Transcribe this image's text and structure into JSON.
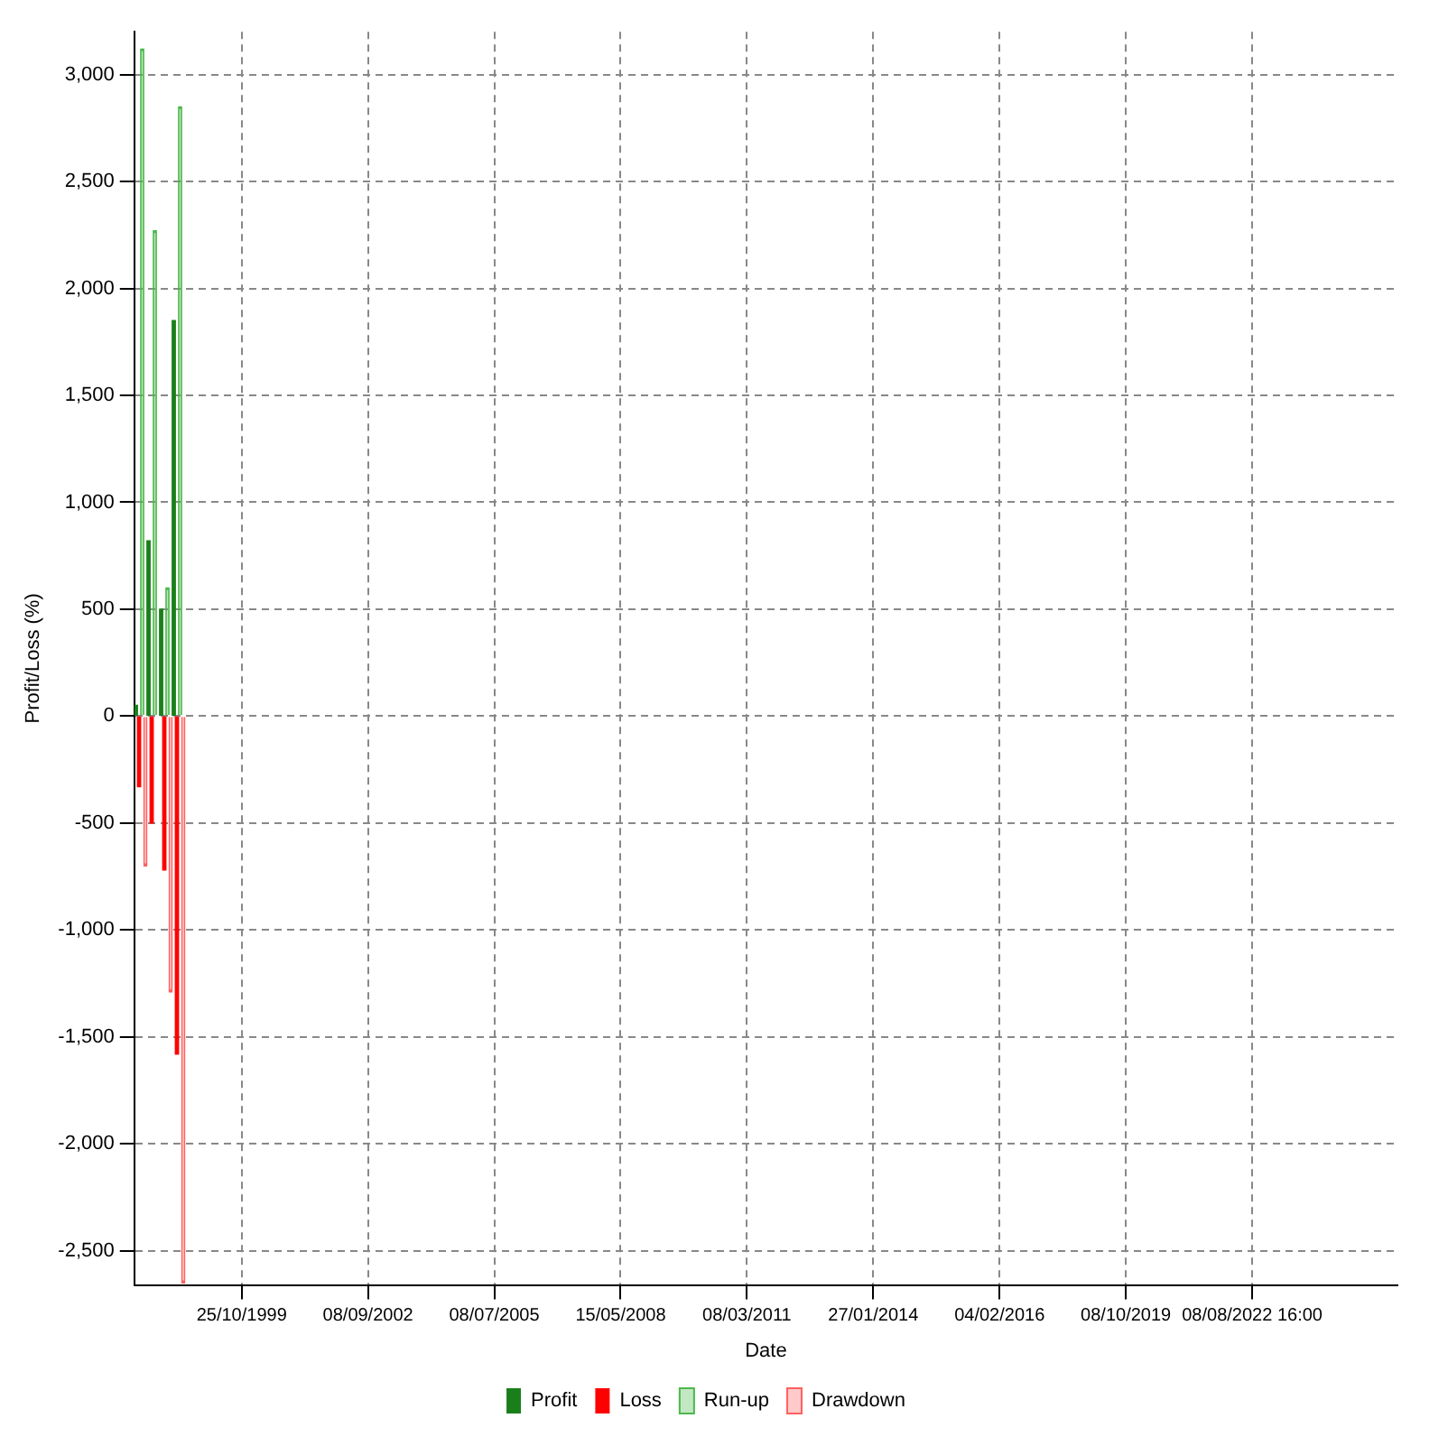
{
  "chart_data": {
    "type": "bar",
    "xlabel": "Date",
    "ylabel": "Profit/Loss (%)",
    "categories": [
      null,
      null,
      null,
      null,
      null,
      null,
      null,
      null,
      "25/10/1999",
      null,
      null,
      null,
      null,
      null,
      null,
      null,
      null,
      null,
      "08/09/2002",
      null,
      null,
      null,
      null,
      null,
      null,
      null,
      null,
      null,
      "08/07/2005",
      null,
      null,
      null,
      null,
      null,
      null,
      null,
      null,
      null,
      "15/05/2008",
      null,
      null,
      null,
      null,
      null,
      null,
      null,
      null,
      null,
      "08/03/2011",
      null,
      null,
      null,
      null,
      null,
      null,
      null,
      null,
      null,
      "27/01/2014",
      null,
      null,
      null,
      null,
      null,
      null,
      null,
      null,
      null,
      "04/02/2016",
      null,
      null,
      null,
      null,
      null,
      null,
      null,
      null,
      null,
      "08/10/2019",
      null,
      null,
      null,
      null,
      null,
      null,
      null,
      null,
      null,
      "08/08/2022 16:00",
      null,
      null,
      null,
      null,
      null,
      null,
      null,
      null,
      null,
      null,
      null
    ],
    "ylim": [
      -2660,
      3200
    ],
    "yticks": [
      {
        "value": -2500,
        "label": "-2,500"
      },
      {
        "value": -2000,
        "label": "-2,000"
      },
      {
        "value": -1500,
        "label": "-1,500"
      },
      {
        "value": -1000,
        "label": "-1,000"
      },
      -500,
      0,
      500,
      {
        "value": 1000,
        "label": "1,000"
      },
      {
        "value": 1500,
        "label": "1,500"
      },
      {
        "value": 2000,
        "label": "2,000"
      },
      {
        "value": 2500,
        "label": "2,500"
      },
      {
        "value": 3000,
        "label": "3,000"
      }
    ],
    "grid": true,
    "legend": "bottom",
    "series": [
      {
        "name": "Profit",
        "color": "#1a7f1a",
        "values": [
          50,
          820,
          500,
          1850,
          null,
          null,
          null,
          null,
          null,
          null,
          null,
          null,
          null,
          null,
          null,
          null,
          null,
          null,
          null,
          null,
          null,
          null,
          null,
          null,
          null,
          null,
          null,
          null,
          null,
          null,
          null,
          null,
          null,
          null,
          null,
          null,
          null,
          null,
          null,
          null,
          null,
          null,
          null,
          null,
          null,
          null,
          null,
          null,
          null,
          null,
          null,
          null,
          null,
          null,
          null,
          null,
          null,
          null,
          null,
          null,
          null,
          null,
          null,
          null,
          null,
          null,
          null,
          null,
          null,
          null,
          null,
          null,
          null,
          null,
          null,
          null,
          null,
          null,
          null,
          null,
          null,
          null,
          null,
          null,
          null,
          null,
          null,
          null,
          null,
          null,
          null,
          null,
          null,
          null,
          null,
          null,
          null,
          null,
          null,
          null
        ]
      },
      {
        "name": "Loss",
        "color": "#ff0000",
        "values": [
          -330,
          -500,
          -720,
          -1580,
          null,
          null,
          null,
          null,
          null,
          null,
          null,
          null,
          null,
          null,
          null,
          null,
          null,
          null,
          null,
          null,
          null,
          null,
          null,
          null,
          null,
          null,
          null,
          null,
          null,
          null,
          null,
          null,
          null,
          null,
          null,
          null,
          null,
          null,
          null,
          null,
          null,
          null,
          null,
          null,
          null,
          null,
          null,
          null,
          null,
          null,
          null,
          null,
          null,
          null,
          null,
          null,
          null,
          null,
          null,
          null,
          null,
          null,
          null,
          null,
          null,
          null,
          null,
          null,
          null,
          null,
          null,
          null,
          null,
          null,
          null,
          null,
          null,
          null,
          null,
          null,
          null,
          null,
          null,
          null,
          null,
          null,
          null,
          null,
          null,
          null,
          null,
          null,
          null,
          null,
          null,
          null,
          null,
          null,
          null,
          null
        ]
      },
      {
        "name": "Run-up",
        "color": "#4cb84c",
        "values": [
          3120,
          2270,
          600,
          2850,
          null,
          null,
          null,
          null,
          null,
          null,
          null,
          null,
          null,
          null,
          null,
          null,
          null,
          null,
          null,
          null,
          null,
          null,
          null,
          null,
          null,
          null,
          null,
          null,
          null,
          null,
          null,
          null,
          null,
          null,
          null,
          null,
          null,
          null,
          null,
          null,
          null,
          null,
          null,
          null,
          null,
          null,
          null,
          null,
          null,
          null,
          null,
          null,
          null,
          null,
          null,
          null,
          null,
          null,
          null,
          null,
          null,
          null,
          null,
          null,
          null,
          null,
          null,
          null,
          null,
          null,
          null,
          null,
          null,
          null,
          null,
          null,
          null,
          null,
          null,
          null,
          null,
          null,
          null,
          null,
          null,
          null,
          null,
          null,
          null,
          null,
          null,
          null,
          null,
          null,
          null,
          null,
          null,
          null,
          null,
          null
        ]
      },
      {
        "name": "Drawdown",
        "color": "#ff6060",
        "values": [
          -700,
          null,
          -1290,
          -2650,
          null,
          null,
          null,
          null,
          null,
          null,
          null,
          null,
          null,
          null,
          null,
          null,
          null,
          null,
          null,
          null,
          null,
          null,
          null,
          null,
          null,
          null,
          null,
          null,
          null,
          null,
          null,
          null,
          null,
          null,
          null,
          null,
          null,
          null,
          null,
          null,
          null,
          null,
          null,
          null,
          null,
          null,
          null,
          null,
          null,
          null,
          null,
          null,
          null,
          null,
          null,
          null,
          null,
          null,
          null,
          null,
          null,
          null,
          null,
          null,
          null,
          null,
          null,
          null,
          null,
          null,
          null,
          null,
          null,
          null,
          null,
          null,
          null,
          null,
          null,
          null,
          null,
          null,
          null,
          null,
          null,
          null,
          null,
          null,
          null,
          null,
          null,
          null,
          null,
          null,
          null,
          null,
          null,
          null,
          null,
          null
        ]
      }
    ]
  }
}
